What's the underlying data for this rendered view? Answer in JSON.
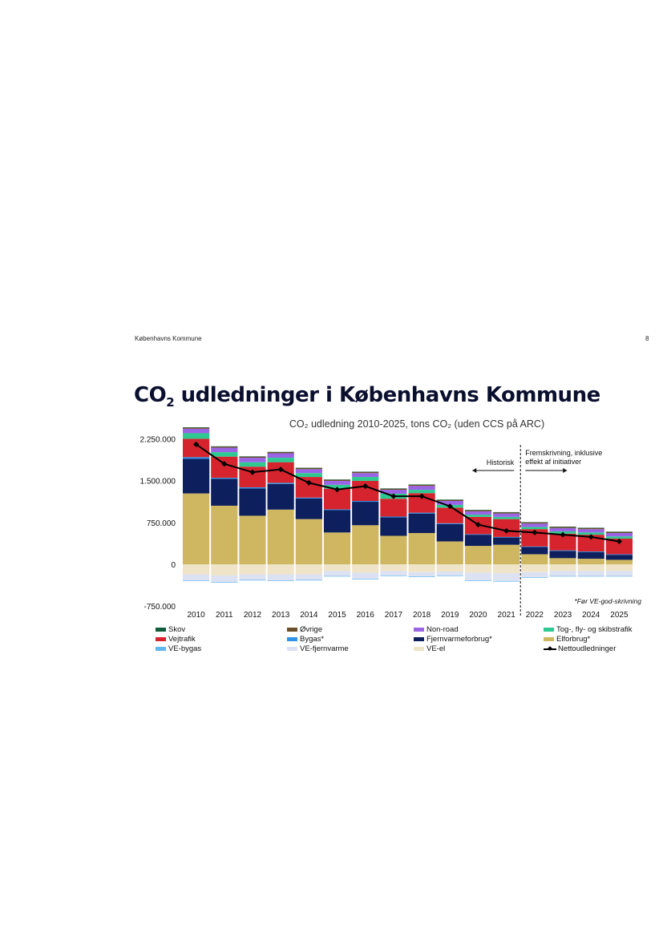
{
  "header": {
    "org": "Københavns Kommune",
    "page_number": "8"
  },
  "page_title": {
    "main": "CO",
    "sub": "2",
    "rest": " udledninger i Københavns Kommune"
  },
  "chart_data": {
    "type": "bar",
    "stacked": true,
    "title": "CO₂ udledning 2010-2025, tons CO₂ (uden CCS på ARC)",
    "categories": [
      "2010",
      "2011",
      "2012",
      "2013",
      "2014",
      "2015",
      "2016",
      "2017",
      "2018",
      "2019",
      "2020",
      "2021",
      "2022",
      "2023",
      "2024",
      "2025"
    ],
    "y_ticks": [
      {
        "value": 2250000,
        "label": "2.250.000"
      },
      {
        "value": 1500000,
        "label": "1.500.000"
      },
      {
        "value": 750000,
        "label": "750.000"
      },
      {
        "value": 0,
        "label": "0"
      },
      {
        "value": -750000,
        "label": "-750.000"
      }
    ],
    "ylim": [
      -800000,
      2450000
    ],
    "series": [
      {
        "name": "Elforbrug*",
        "color": "#cfb761",
        "values": [
          1270000,
          1050000,
          870000,
          980000,
          810000,
          570000,
          700000,
          510000,
          560000,
          410000,
          330000,
          350000,
          180000,
          110000,
          100000,
          80000
        ]
      },
      {
        "name": "Fjernvarmeforbrug*",
        "color": "#0d1f5c",
        "values": [
          620000,
          480000,
          490000,
          460000,
          370000,
          400000,
          420000,
          330000,
          350000,
          310000,
          200000,
          130000,
          130000,
          130000,
          120000,
          90000
        ]
      },
      {
        "name": "Bygas*",
        "color": "#2f93e8",
        "values": [
          30000,
          20000,
          20000,
          20000,
          15000,
          15000,
          15000,
          15000,
          15000,
          15000,
          10000,
          10000,
          10000,
          10000,
          10000,
          10000
        ]
      },
      {
        "name": "Vejtrafik",
        "color": "#d6242e",
        "values": [
          330000,
          380000,
          370000,
          370000,
          370000,
          370000,
          360000,
          320000,
          350000,
          280000,
          310000,
          320000,
          310000,
          300000,
          300000,
          280000
        ]
      },
      {
        "name": "Tog-, fly- og skibstrafik",
        "color": "#2ec991",
        "values": [
          100000,
          80000,
          80000,
          80000,
          70000,
          70000,
          70000,
          90000,
          60000,
          50000,
          40000,
          40000,
          40000,
          40000,
          40000,
          40000
        ]
      },
      {
        "name": "Non-road",
        "color": "#9b64e6",
        "values": [
          80000,
          80000,
          80000,
          80000,
          70000,
          70000,
          70000,
          70000,
          70000,
          70000,
          60000,
          60000,
          60000,
          60000,
          60000,
          60000
        ]
      },
      {
        "name": "Øvrige",
        "color": "#6b4f2a",
        "values": [
          20000,
          20000,
          20000,
          20000,
          20000,
          20000,
          20000,
          20000,
          20000,
          20000,
          20000,
          20000,
          20000,
          20000,
          20000,
          20000
        ]
      },
      {
        "name": "Skov",
        "color": "#115c3a",
        "values": [
          5000,
          5000,
          5000,
          5000,
          5000,
          5000,
          5000,
          5000,
          5000,
          5000,
          5000,
          5000,
          5000,
          5000,
          5000,
          5000
        ]
      },
      {
        "name": "VE-el",
        "color": "#efe4c8",
        "values": [
          -180000,
          -200000,
          -180000,
          -180000,
          -180000,
          -120000,
          -150000,
          -120000,
          -140000,
          -130000,
          -150000,
          -160000,
          -140000,
          -120000,
          -120000,
          -120000
        ]
      },
      {
        "name": "VE-fjernvarme",
        "color": "#dde2f2",
        "values": [
          -110000,
          -120000,
          -100000,
          -110000,
          -100000,
          -90000,
          -110000,
          -80000,
          -80000,
          -70000,
          -140000,
          -140000,
          -90000,
          -90000,
          -90000,
          -90000
        ]
      },
      {
        "name": "VE-bygas",
        "color": "#63b6ee",
        "values": [
          -10000,
          -10000,
          -10000,
          -10000,
          -10000,
          -10000,
          -10000,
          -10000,
          -10000,
          -10000,
          -10000,
          -10000,
          -10000,
          -10000,
          -10000,
          -10000
        ]
      }
    ],
    "line": {
      "name": "Nettoudledninger",
      "color": "#000000",
      "values": [
        2150000,
        1800000,
        1650000,
        1700000,
        1460000,
        1340000,
        1400000,
        1220000,
        1220000,
        1040000,
        710000,
        600000,
        570000,
        530000,
        490000,
        410000
      ]
    },
    "divider_after": "2021",
    "annotations": {
      "historisk": "Historisk",
      "forecast_line1": "Fremskrivning, inklusive",
      "forecast_line2": "effekt af initiativer",
      "footnote": "*Før VE-god-skrivning"
    }
  },
  "legend": [
    {
      "label": "Skov",
      "color": "#115c3a",
      "kind": "box"
    },
    {
      "label": "Øvrige",
      "color": "#6b4f2a",
      "kind": "box"
    },
    {
      "label": "Non-road",
      "color": "#9b64e6",
      "kind": "box"
    },
    {
      "label": "Tog-, fly- og skibstrafik",
      "color": "#2ec991",
      "kind": "box"
    },
    {
      "label": "Vejtrafik",
      "color": "#d6242e",
      "kind": "box"
    },
    {
      "label": "Bygas*",
      "color": "#2f93e8",
      "kind": "box"
    },
    {
      "label": "Fjernvarmeforbrug*",
      "color": "#0d1f5c",
      "kind": "box"
    },
    {
      "label": "Elforbrug*",
      "color": "#cfb761",
      "kind": "box"
    },
    {
      "label": "VE-bygas",
      "color": "#63b6ee",
      "kind": "box"
    },
    {
      "label": "VE-fjernvarme",
      "color": "#dde2f2",
      "kind": "box"
    },
    {
      "label": "VE-el",
      "color": "#efe4c8",
      "kind": "box"
    },
    {
      "label": "Nettoudledninger",
      "color": "#000000",
      "kind": "line"
    }
  ]
}
